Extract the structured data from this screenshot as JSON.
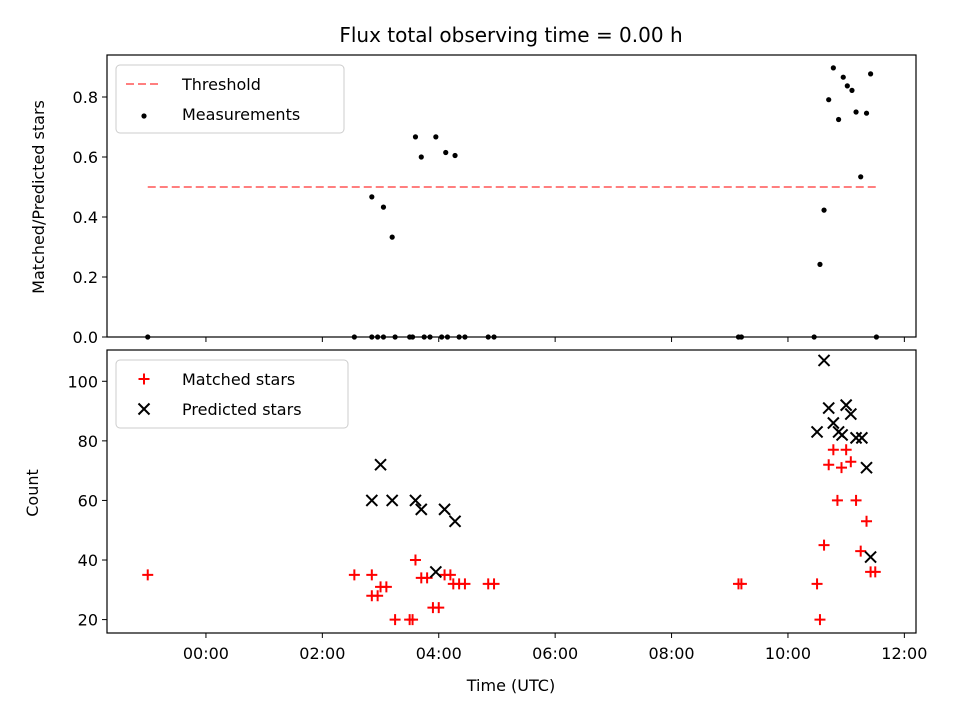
{
  "chart_data": [
    {
      "type": "scatter",
      "title": "Flux total observing time = 0.00 h",
      "ylabel": "Matched/Predicted stars",
      "xlabel": "",
      "xlim": [
        -1.7,
        12.2
      ],
      "ylim": [
        0.0,
        0.94
      ],
      "x_ticks": [
        0,
        2,
        4,
        6,
        8,
        10,
        12
      ],
      "y_ticks": [
        0.0,
        0.2,
        0.4,
        0.6,
        0.8
      ],
      "y_tick_labels": [
        "0.0",
        "0.2",
        "0.4",
        "0.6",
        "0.8"
      ],
      "grid": false,
      "legend_position": "upper-left",
      "legend": [
        "Threshold",
        "Measurements"
      ],
      "threshold": {
        "name": "Threshold",
        "y": 0.5,
        "x_range": [
          -1.0,
          11.52
        ],
        "color": "#ff7f7f",
        "style": "dashed"
      },
      "series": [
        {
          "name": "Measurements",
          "marker": "dot",
          "color": "#000000",
          "points": [
            [
              -1.0,
              0.0
            ],
            [
              2.55,
              0.0
            ],
            [
              2.85,
              0.0
            ],
            [
              2.95,
              0.0
            ],
            [
              3.05,
              0.0
            ],
            [
              3.25,
              0.0
            ],
            [
              3.5,
              0.0
            ],
            [
              3.55,
              0.0
            ],
            [
              3.75,
              0.0
            ],
            [
              3.85,
              0.0
            ],
            [
              4.05,
              0.0
            ],
            [
              4.15,
              0.0
            ],
            [
              4.35,
              0.0
            ],
            [
              4.45,
              0.0
            ],
            [
              4.85,
              0.0
            ],
            [
              4.95,
              0.0
            ],
            [
              9.15,
              0.0
            ],
            [
              9.2,
              0.0
            ],
            [
              10.45,
              0.0
            ],
            [
              11.52,
              0.0
            ],
            [
              2.85,
              0.467
            ],
            [
              3.05,
              0.433
            ],
            [
              3.2,
              0.333
            ],
            [
              3.6,
              0.667
            ],
            [
              3.7,
              0.6
            ],
            [
              3.95,
              0.667
            ],
            [
              4.12,
              0.615
            ],
            [
              4.28,
              0.605
            ],
            [
              10.55,
              0.242
            ],
            [
              10.62,
              0.423
            ],
            [
              10.7,
              0.791
            ],
            [
              10.78,
              0.897
            ],
            [
              10.87,
              0.725
            ],
            [
              10.95,
              0.866
            ],
            [
              11.02,
              0.837
            ],
            [
              11.1,
              0.822
            ],
            [
              11.17,
              0.75
            ],
            [
              11.25,
              0.534
            ],
            [
              11.35,
              0.746
            ],
            [
              11.42,
              0.877
            ]
          ]
        }
      ]
    },
    {
      "type": "scatter",
      "title": "",
      "ylabel": "Count",
      "xlabel": "Time (UTC)",
      "xlim": [
        -1.7,
        12.2
      ],
      "ylim": [
        15.5,
        110.5
      ],
      "x_ticks": [
        0,
        2,
        4,
        6,
        8,
        10,
        12
      ],
      "x_tick_labels": [
        "00:00",
        "02:00",
        "04:00",
        "06:00",
        "08:00",
        "10:00",
        "12:00"
      ],
      "y_ticks": [
        20,
        40,
        60,
        80,
        100
      ],
      "y_tick_labels": [
        "20",
        "40",
        "60",
        "80",
        "100"
      ],
      "grid": false,
      "legend_position": "upper-left",
      "legend": [
        "Matched stars",
        "Predicted stars"
      ],
      "series": [
        {
          "name": "Matched stars",
          "marker": "plus",
          "color": "#ff0000",
          "points": [
            [
              -1.0,
              35
            ],
            [
              2.55,
              35
            ],
            [
              2.85,
              35
            ],
            [
              2.85,
              28
            ],
            [
              2.95,
              28
            ],
            [
              3.0,
              31
            ],
            [
              3.1,
              31
            ],
            [
              3.25,
              20
            ],
            [
              3.5,
              20
            ],
            [
              3.55,
              20
            ],
            [
              3.6,
              40
            ],
            [
              3.7,
              34
            ],
            [
              3.8,
              34
            ],
            [
              3.9,
              24
            ],
            [
              4.0,
              24
            ],
            [
              4.1,
              35
            ],
            [
              4.2,
              35
            ],
            [
              4.25,
              32
            ],
            [
              4.35,
              32
            ],
            [
              4.45,
              32
            ],
            [
              4.85,
              32
            ],
            [
              4.95,
              32
            ],
            [
              9.15,
              32
            ],
            [
              9.2,
              32
            ],
            [
              10.5,
              32
            ],
            [
              10.55,
              20
            ],
            [
              10.62,
              45
            ],
            [
              10.7,
              72
            ],
            [
              10.78,
              77
            ],
            [
              10.85,
              60
            ],
            [
              10.92,
              71
            ],
            [
              11.0,
              77
            ],
            [
              11.08,
              73
            ],
            [
              11.17,
              60
            ],
            [
              11.25,
              43
            ],
            [
              11.35,
              53
            ],
            [
              11.42,
              36
            ],
            [
              11.5,
              36
            ]
          ]
        },
        {
          "name": "Predicted stars",
          "marker": "x",
          "color": "#000000",
          "points": [
            [
              2.85,
              60
            ],
            [
              3.0,
              72
            ],
            [
              3.2,
              60
            ],
            [
              3.6,
              60
            ],
            [
              3.7,
              57
            ],
            [
              3.95,
              36
            ],
            [
              4.1,
              57
            ],
            [
              4.28,
              53
            ],
            [
              10.5,
              83
            ],
            [
              10.62,
              107
            ],
            [
              10.7,
              91
            ],
            [
              10.78,
              86
            ],
            [
              10.87,
              83
            ],
            [
              10.93,
              82
            ],
            [
              11.0,
              92
            ],
            [
              11.08,
              89
            ],
            [
              11.17,
              81
            ],
            [
              11.27,
              81
            ],
            [
              11.35,
              71
            ],
            [
              11.42,
              41
            ]
          ]
        }
      ]
    }
  ]
}
